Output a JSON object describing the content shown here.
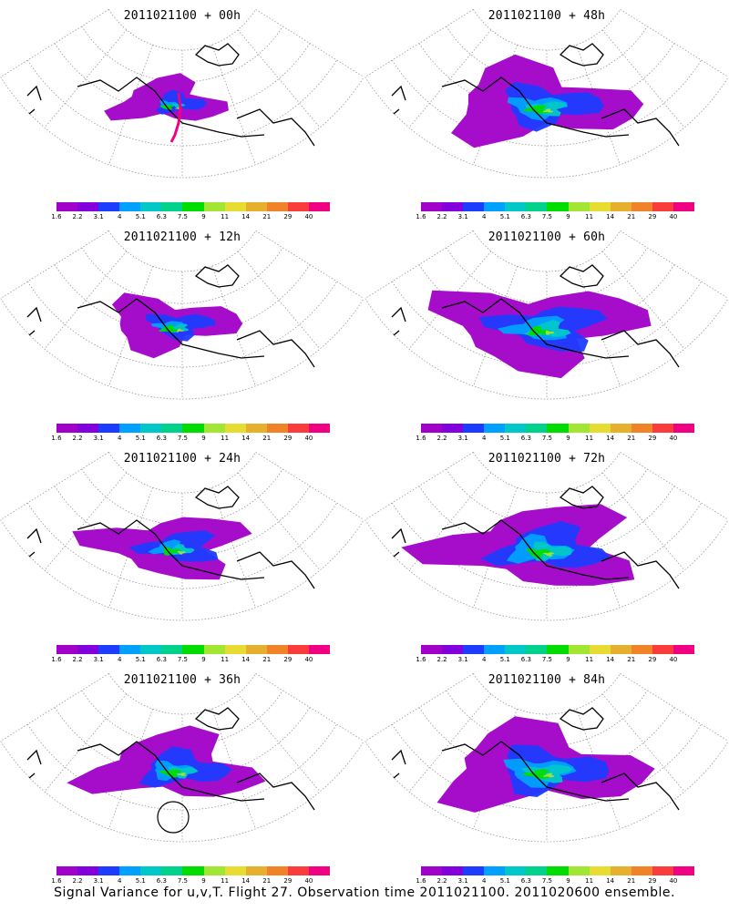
{
  "panels": [
    {
      "title": "2011021100 + 00h",
      "spread": 0.3,
      "intensity": 0.35,
      "marker": "track",
      "circle": false
    },
    {
      "title": "2011021100 + 48h",
      "spread": 0.85,
      "intensity": 0.75,
      "marker": "none",
      "circle": false
    },
    {
      "title": "2011021100 + 12h",
      "spread": 0.45,
      "intensity": 0.55,
      "marker": "none",
      "circle": false
    },
    {
      "title": "2011021100 + 60h",
      "spread": 0.95,
      "intensity": 0.75,
      "marker": "none",
      "circle": false
    },
    {
      "title": "2011021100 + 24h",
      "spread": 0.6,
      "intensity": 0.6,
      "marker": "none",
      "circle": false
    },
    {
      "title": "2011021100 + 72h",
      "spread": 0.95,
      "intensity": 0.8,
      "marker": "none",
      "circle": false
    },
    {
      "title": "2011021100 + 36h",
      "spread": 0.7,
      "intensity": 0.65,
      "marker": "none",
      "circle": true
    },
    {
      "title": "2011021100 + 84h",
      "spread": 0.95,
      "intensity": 0.85,
      "marker": "none",
      "circle": false
    }
  ],
  "colorbar": {
    "colors": [
      "#a000c8",
      "#8200dc",
      "#1e3cff",
      "#00a0ff",
      "#00c8c8",
      "#00d28c",
      "#00dc00",
      "#a0e632",
      "#e6dc32",
      "#e6af2d",
      "#f08228",
      "#fa3c3c",
      "#f00082"
    ],
    "labels": [
      "1.6",
      "2.2",
      "3.1",
      "4",
      "5.1",
      "6.3",
      "7.5",
      "9",
      "11",
      "14",
      "21",
      "29",
      "40"
    ]
  },
  "caption": "Signal Variance for u,v,T. Flight 27. Observation time 2011021100. 2011020600 ensemble."
}
